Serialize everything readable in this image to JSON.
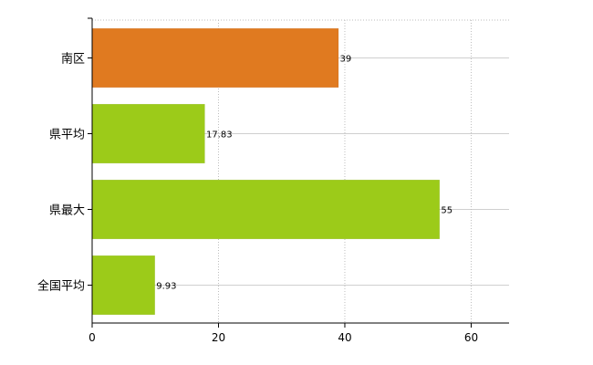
{
  "chart_data": {
    "type": "bar",
    "orientation": "horizontal",
    "categories": [
      "南区",
      "県平均",
      "県最大",
      "全国平均"
    ],
    "values": [
      39,
      17.83,
      55,
      9.93
    ],
    "value_labels": [
      "39",
      "17.83",
      "55",
      "9.93"
    ],
    "bar_colors": [
      "#e07a20",
      "#9ccb19",
      "#9ccb19",
      "#9ccb19"
    ],
    "xlim": [
      0,
      66
    ],
    "x_ticks": [
      0,
      20,
      40,
      60
    ],
    "x_tick_labels": [
      "0",
      "20",
      "40",
      "60"
    ],
    "grid": true,
    "legend": "none"
  }
}
